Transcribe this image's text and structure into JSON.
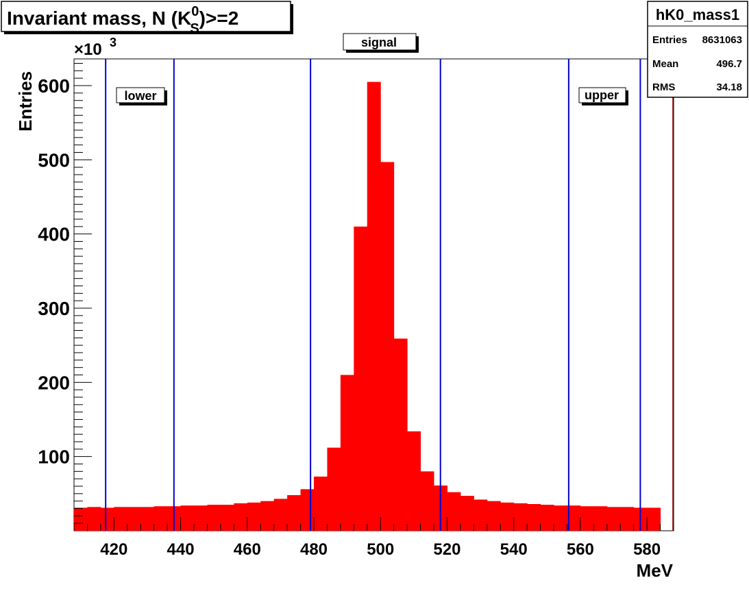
{
  "colors": {
    "fill": "#ff0000",
    "lines": "#0000d0",
    "frame": "#000000",
    "edge": "#8b0000"
  },
  "chart_data": {
    "type": "bar",
    "title_main": "Invariant mass, N (K",
    "title_sup": "0",
    "title_sub": "S",
    "title_tail": ")>=2",
    "xlabel": "MeV",
    "ylabel": "Entries",
    "y_scale_label": "×10",
    "y_scale_exp": "3",
    "xlim": [
      408,
      588
    ],
    "ylim": [
      0,
      636
    ],
    "bin_width": 4,
    "bin_edges_start": 408,
    "values": [
      31,
      32,
      31,
      32,
      32,
      32,
      33,
      33,
      34,
      34,
      35,
      35,
      37,
      38,
      40,
      43,
      48,
      56,
      73,
      112,
      210,
      410,
      605,
      497,
      259,
      134,
      80,
      61,
      52,
      47,
      42,
      40,
      38,
      37,
      36,
      35,
      34,
      34,
      33,
      33,
      32,
      32,
      31,
      31
    ],
    "x_ticks": [
      "420",
      "440",
      "460",
      "480",
      "500",
      "520",
      "540",
      "560",
      "580"
    ],
    "x_tick_values": [
      420,
      440,
      460,
      480,
      500,
      520,
      540,
      560,
      580
    ],
    "y_ticks": [
      "100",
      "200",
      "300",
      "400",
      "500",
      "600"
    ],
    "y_tick_values": [
      100,
      200,
      300,
      400,
      500,
      600
    ],
    "vlines": [
      417.5,
      438,
      479,
      518,
      556.5,
      578
    ],
    "labels": {
      "lower": "lower",
      "signal": "signal",
      "upper": "upper"
    }
  },
  "stats": {
    "name": "hK0_mass1",
    "rows": [
      {
        "label": "Entries",
        "value": "8631063"
      },
      {
        "label": "Mean",
        "value": "496.7"
      },
      {
        "label": "RMS",
        "value": "34.18"
      }
    ]
  }
}
